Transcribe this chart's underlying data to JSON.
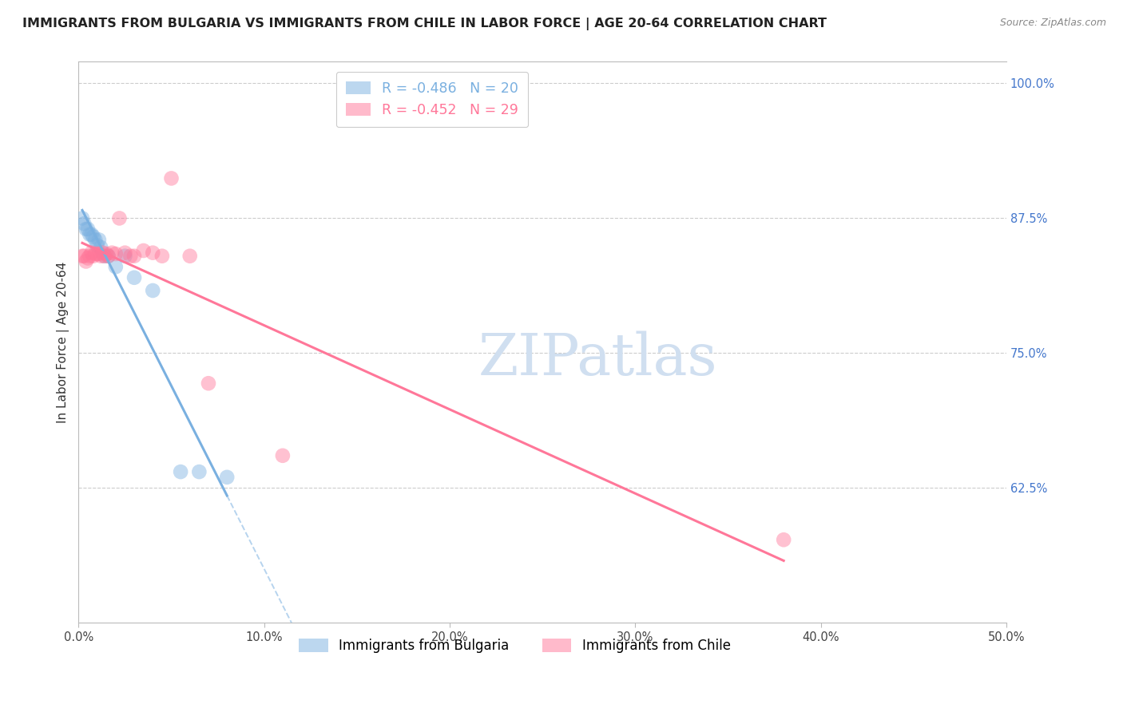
{
  "title": "IMMIGRANTS FROM BULGARIA VS IMMIGRANTS FROM CHILE IN LABOR FORCE | AGE 20-64 CORRELATION CHART",
  "source": "Source: ZipAtlas.com",
  "ylabel": "In Labor Force | Age 20-64",
  "xlim": [
    0.0,
    0.5
  ],
  "ylim": [
    0.5,
    1.02
  ],
  "xticks": [
    0.0,
    0.1,
    0.2,
    0.3,
    0.4,
    0.5
  ],
  "yticks_right": [
    0.625,
    0.75,
    0.875,
    1.0
  ],
  "ytick_right_labels": [
    "62.5%",
    "75.0%",
    "87.5%",
    "100.0%"
  ],
  "grid_color": "#cccccc",
  "background_color": "#ffffff",
  "bulgaria_color": "#7ab0e0",
  "chile_color": "#ff7799",
  "bulgaria_R": -0.486,
  "bulgaria_N": 20,
  "chile_R": -0.452,
  "chile_N": 29,
  "legend_label_bulgaria": "Immigrants from Bulgaria",
  "legend_label_chile": "Immigrants from Chile",
  "bulgaria_x": [
    0.002,
    0.003,
    0.004,
    0.005,
    0.006,
    0.007,
    0.008,
    0.009,
    0.01,
    0.011,
    0.012,
    0.014,
    0.016,
    0.02,
    0.025,
    0.03,
    0.04,
    0.055,
    0.065,
    0.08
  ],
  "bulgaria_y": [
    0.875,
    0.87,
    0.865,
    0.865,
    0.86,
    0.86,
    0.858,
    0.855,
    0.85,
    0.855,
    0.848,
    0.84,
    0.84,
    0.83,
    0.84,
    0.82,
    0.808,
    0.64,
    0.64,
    0.635
  ],
  "chile_x": [
    0.002,
    0.003,
    0.004,
    0.005,
    0.006,
    0.007,
    0.008,
    0.009,
    0.01,
    0.011,
    0.012,
    0.013,
    0.014,
    0.015,
    0.016,
    0.018,
    0.02,
    0.022,
    0.025,
    0.028,
    0.03,
    0.035,
    0.04,
    0.045,
    0.05,
    0.06,
    0.07,
    0.11,
    0.38
  ],
  "chile_y": [
    0.84,
    0.84,
    0.835,
    0.838,
    0.84,
    0.843,
    0.84,
    0.842,
    0.842,
    0.842,
    0.84,
    0.843,
    0.84,
    0.842,
    0.84,
    0.843,
    0.842,
    0.875,
    0.843,
    0.84,
    0.84,
    0.845,
    0.843,
    0.84,
    0.912,
    0.84,
    0.722,
    0.655,
    0.577
  ],
  "watermark_text": "ZIPatlas",
  "watermark_color": "#d0dff0",
  "title_fontsize": 11.5,
  "axis_label_fontsize": 11,
  "tick_fontsize": 10.5,
  "right_tick_color": "#4477cc"
}
